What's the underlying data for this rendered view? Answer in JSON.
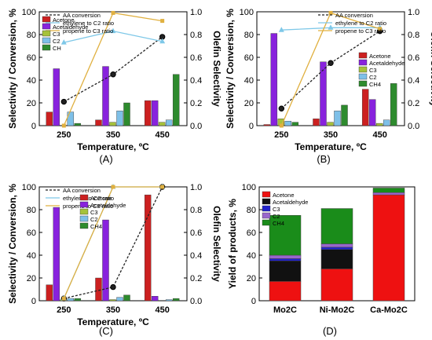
{
  "figure": {
    "panel_captions": [
      "(A)",
      "(B)",
      "(C)",
      "(D)"
    ]
  },
  "colors": {
    "acetone": "#cc2020",
    "acetaldehyde": "#8822dd",
    "c3": "#a6c23a",
    "c2": "#7ec0e8",
    "ch4": "#2e8b2e",
    "aa_conversion": "#222222",
    "ethylene_ratio": "#7ec8e8",
    "propene_ratio": "#e0b040",
    "stack_acetone": "#ee1111",
    "stack_acetaldehyde": "#111111",
    "stack_c3": "#2222cc",
    "stack_c2": "#9966cc",
    "stack_ch4": "#1a8c1a"
  },
  "chart_data": [
    {
      "type": "bar",
      "panel": "(A)",
      "categories": [
        "250",
        "350",
        "450"
      ],
      "xlabel": "Temperature, ºC",
      "ylabel": "Selectivity / Conversion, %",
      "y2label": "Olefin Selectivity",
      "ylim": [
        0,
        100
      ],
      "y2lim": [
        0,
        1.0
      ],
      "yticks": [
        "0",
        "20",
        "40",
        "60",
        "80",
        "100"
      ],
      "y2ticks": [
        "0.0",
        "0.2",
        "0.4",
        "0.6",
        "0.8",
        "1.0"
      ],
      "bar_legend": "top-left",
      "line_legend": "top-center",
      "series": [
        {
          "name": "Acetone",
          "key": "acetone",
          "values": [
            12,
            5,
            22
          ]
        },
        {
          "name": "Acetaldehyde",
          "key": "acetaldehyde",
          "values": [
            50,
            52,
            22
          ]
        },
        {
          "name": "C3",
          "key": "c3",
          "values": [
            0,
            3,
            3
          ]
        },
        {
          "name": "C2",
          "key": "c2",
          "values": [
            12,
            13,
            5
          ]
        },
        {
          "name": "CH",
          "key": "ch4",
          "values": [
            2,
            20,
            45
          ]
        }
      ],
      "lines": [
        {
          "name": "AA conversion",
          "key": "aa_conversion",
          "axis": "left",
          "style": "dashed",
          "values": [
            21,
            45,
            78
          ]
        },
        {
          "name": "ethylene to C2 ratio",
          "key": "ethylene_ratio",
          "axis": "right",
          "style": "solid",
          "values": [
            0.73,
            0.83,
            0.74
          ]
        },
        {
          "name": "propene to C3 ratio",
          "key": "propene_ratio",
          "axis": "right",
          "style": "solid",
          "values": [
            0.0,
            0.99,
            0.92
          ]
        }
      ]
    },
    {
      "type": "bar",
      "panel": "(B)",
      "categories": [
        "250",
        "350",
        "450"
      ],
      "xlabel": "Temperature, ºC",
      "ylabel": "Selectivity / Conversion, %",
      "y2label": "Olefin Selectivity",
      "ylim": [
        0,
        100
      ],
      "y2lim": [
        0,
        1.0
      ],
      "yticks": [
        "0",
        "20",
        "40",
        "60",
        "80",
        "100"
      ],
      "y2ticks": [
        "0.0",
        "0.2",
        "0.4",
        "0.6",
        "0.8",
        "1.0"
      ],
      "bar_legend": "right",
      "line_legend": "top-right",
      "series": [
        {
          "name": "Acetone",
          "key": "acetone",
          "values": [
            1,
            6,
            32
          ]
        },
        {
          "name": "Acetaldehyde",
          "key": "acetaldehyde",
          "values": [
            81,
            56,
            23
          ]
        },
        {
          "name": "C3",
          "key": "c3",
          "values": [
            6,
            3,
            2
          ]
        },
        {
          "name": "C2",
          "key": "c2",
          "values": [
            4,
            13,
            5
          ]
        },
        {
          "name": "CH4",
          "key": "ch4",
          "values": [
            3,
            18,
            37
          ]
        }
      ],
      "lines": [
        {
          "name": "AA conversion",
          "key": "aa_conversion",
          "axis": "left",
          "style": "dashed",
          "values": [
            15,
            55,
            83
          ]
        },
        {
          "name": "ethylene to C2 ratio",
          "key": "ethylene_ratio",
          "axis": "right",
          "style": "solid",
          "values": [
            0.84,
            0.86,
            0.86
          ]
        },
        {
          "name": "propene to C3 ratio",
          "key": "propene_ratio",
          "axis": "right",
          "style": "solid",
          "values": [
            0.0,
            0.99,
            0.85
          ]
        }
      ]
    },
    {
      "type": "bar",
      "panel": "(C)",
      "categories": [
        "250",
        "350",
        "450"
      ],
      "xlabel": "Temperature, ºC",
      "ylabel": "Selectivity / Conversion, %",
      "y2label": "Olefin Selectivity",
      "ylim": [
        0,
        100
      ],
      "y2lim": [
        0,
        1.0
      ],
      "yticks": [
        "0",
        "20",
        "40",
        "60",
        "80",
        "100"
      ],
      "y2ticks": [
        "0.0",
        "0.2",
        "0.4",
        "0.6",
        "0.8",
        "1.0"
      ],
      "bar_legend": "center-left",
      "line_legend": "top-center",
      "series": [
        {
          "name": "Acetone",
          "key": "acetone",
          "values": [
            14,
            20,
            93
          ]
        },
        {
          "name": "Acetaldehyde",
          "key": "acetaldehyde",
          "values": [
            82,
            71,
            4
          ]
        },
        {
          "name": "C3",
          "key": "c3",
          "values": [
            1,
            1,
            0
          ]
        },
        {
          "name": "C2",
          "key": "c2",
          "values": [
            2,
            3,
            1
          ]
        },
        {
          "name": "CH4",
          "key": "ch4",
          "values": [
            2,
            5,
            2
          ]
        }
      ],
      "lines": [
        {
          "name": "AA conversion",
          "key": "aa_conversion",
          "axis": "left",
          "style": "dashed",
          "values": [
            2,
            12,
            100
          ]
        },
        {
          "name": "ethylene to C2 ratio",
          "key": "ethylene_ratio",
          "axis": "right",
          "style": "solid",
          "values": [
            0.02,
            1.0,
            1.0
          ]
        },
        {
          "name": "propene to C3 ratio",
          "key": "propene_ratio",
          "axis": "right",
          "style": "solid",
          "values": [
            0.02,
            1.0,
            1.0
          ]
        }
      ]
    },
    {
      "type": "bar",
      "stacked": true,
      "panel": "(D)",
      "categories": [
        "Mo2C",
        "Ni-Mo2C",
        "Ca-Mo2C"
      ],
      "xlabel": "",
      "ylabel": "Yield of products, %",
      "ylim": [
        0,
        100
      ],
      "yticks": [
        "0",
        "20",
        "40",
        "60",
        "80",
        "100"
      ],
      "bar_legend": "top-left",
      "series": [
        {
          "name": "Acetone",
          "key": "stack_acetone",
          "values": [
            17,
            28,
            93
          ]
        },
        {
          "name": "Acetaldehyde",
          "key": "stack_acetaldehyde",
          "values": [
            18,
            17,
            0
          ]
        },
        {
          "name": "C3",
          "key": "stack_c3",
          "values": [
            2,
            2,
            0
          ]
        },
        {
          "name": "C2",
          "key": "stack_c2",
          "values": [
            3,
            3,
            2
          ]
        },
        {
          "name": "CH4",
          "key": "stack_ch4",
          "values": [
            35,
            31,
            4
          ]
        }
      ]
    }
  ]
}
